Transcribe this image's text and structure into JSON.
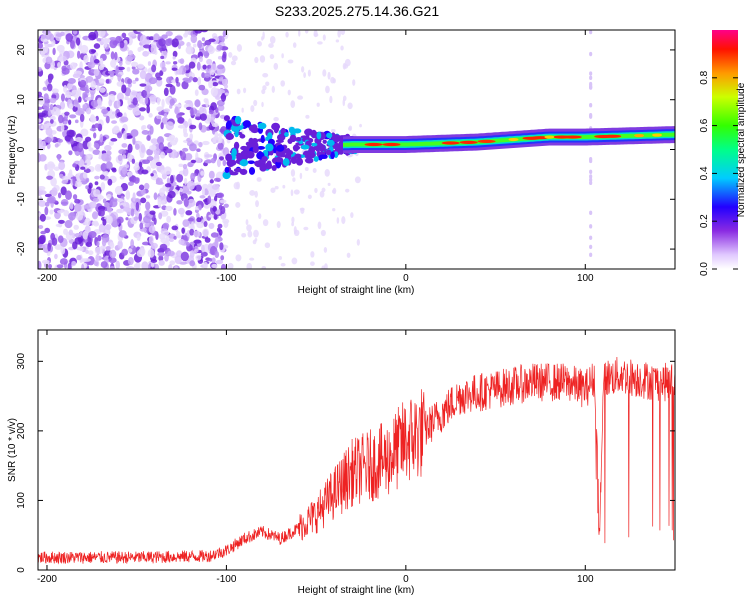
{
  "title": "S233.2025.275.14.36.G21",
  "colors": {
    "snr_line": "#ee2222",
    "axis": "#000000",
    "background": "#ffffff"
  },
  "chart_data": [
    {
      "type": "heatmap",
      "name": "spectrogram",
      "xlabel": "Height of straight line (km)",
      "ylabel": "Frequency (Hz)",
      "xlim": [
        -205,
        150
      ],
      "ylim": [
        -24,
        24
      ],
      "xticks": [
        -200,
        -100,
        0,
        100
      ],
      "yticks": [
        20,
        10,
        0,
        -10,
        -20
      ],
      "colorbar": {
        "label": "Normalized spectral amplitude",
        "range": [
          0,
          1
        ],
        "ticks": [
          0.0,
          0.2,
          0.4,
          0.6,
          0.8
        ]
      },
      "dominant_frequency_trend": {
        "x": [
          -100,
          -60,
          -30,
          0,
          40,
          80,
          100,
          150
        ],
        "freq_hz": [
          0.5,
          0.5,
          1.0,
          1.0,
          1.5,
          2.5,
          2.5,
          3.0
        ]
      },
      "noise_region_x": [
        -205,
        -100
      ]
    },
    {
      "type": "line",
      "name": "snr",
      "xlabel": "Height of straight line (km)",
      "ylabel": "SNR (10 * v/v)",
      "xlim": [
        -205,
        150
      ],
      "ylim": [
        0,
        345
      ],
      "xticks": [
        -200,
        -100,
        0,
        100
      ],
      "yticks": [
        0,
        100,
        200,
        300
      ],
      "series": [
        {
          "name": "SNR",
          "x": [
            -205,
            -150,
            -110,
            -100,
            -90,
            -80,
            -70,
            -60,
            -50,
            -40,
            -30,
            -20,
            -10,
            0,
            10,
            20,
            30,
            50,
            70,
            90,
            100,
            105,
            108,
            110,
            120,
            130,
            140,
            150
          ],
          "y": [
            18,
            18,
            20,
            28,
            45,
            55,
            45,
            60,
            80,
            110,
            140,
            150,
            160,
            185,
            200,
            225,
            250,
            260,
            270,
            270,
            260,
            275,
            45,
            275,
            280,
            275,
            270,
            270
          ]
        }
      ]
    }
  ]
}
